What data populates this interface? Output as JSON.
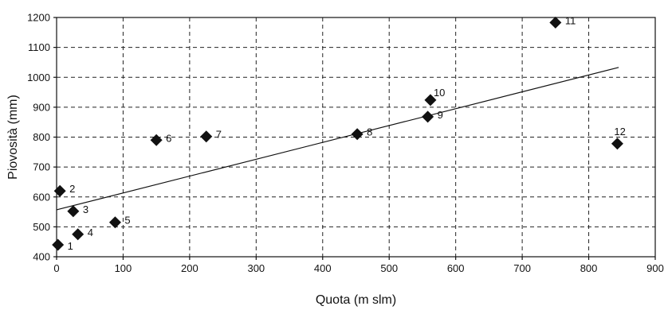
{
  "chart_data": {
    "type": "scatter",
    "title": "",
    "xlabel": "Quota (m slm)",
    "ylabel": "Piovosità (mm)",
    "xlim": [
      0,
      900
    ],
    "ylim": [
      400,
      1200
    ],
    "xticks": [
      0,
      100,
      200,
      300,
      400,
      500,
      600,
      700,
      800,
      900
    ],
    "yticks": [
      400,
      500,
      600,
      700,
      800,
      900,
      1000,
      1100,
      1200
    ],
    "grid": true,
    "points": [
      {
        "label": "1",
        "x": 2,
        "y": 440
      },
      {
        "label": "2",
        "x": 5,
        "y": 620
      },
      {
        "label": "3",
        "x": 25,
        "y": 552
      },
      {
        "label": "4",
        "x": 32,
        "y": 475
      },
      {
        "label": "5",
        "x": 88,
        "y": 515
      },
      {
        "label": "6",
        "x": 150,
        "y": 790
      },
      {
        "label": "7",
        "x": 225,
        "y": 802
      },
      {
        "label": "8",
        "x": 452,
        "y": 810
      },
      {
        "label": "9",
        "x": 558,
        "y": 868
      },
      {
        "label": "10",
        "x": 562,
        "y": 924
      },
      {
        "label": "11",
        "x": 750,
        "y": 1183
      },
      {
        "label": "12",
        "x": 843,
        "y": 778
      }
    ],
    "trendline": {
      "x": [
        0,
        845
      ],
      "y": [
        557,
        1033
      ]
    }
  }
}
